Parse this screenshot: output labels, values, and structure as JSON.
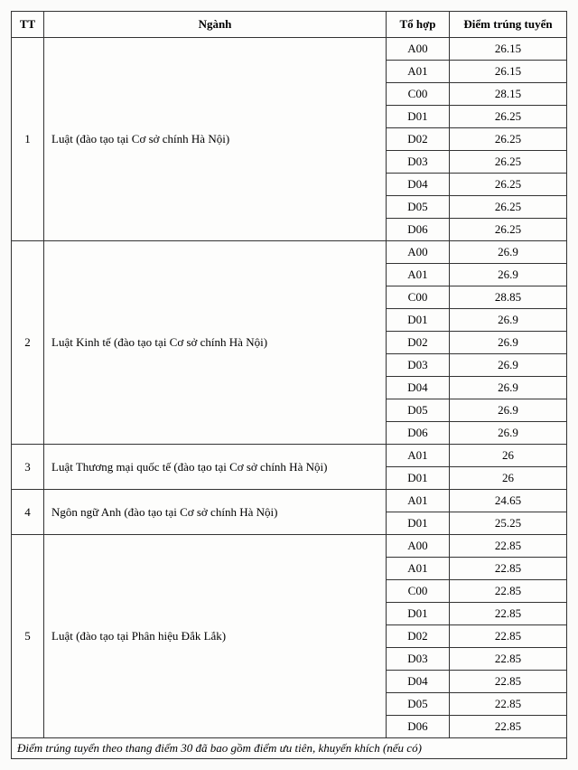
{
  "columns": {
    "tt": "TT",
    "nganh": "Ngành",
    "tohop": "Tổ hợp",
    "diem": "Điểm trúng tuyển"
  },
  "majors": [
    {
      "tt": "1",
      "name": "Luật (đào tạo tại Cơ sở chính Hà Nội)",
      "rows": [
        {
          "combo": "A00",
          "score": "26.15"
        },
        {
          "combo": "A01",
          "score": "26.15"
        },
        {
          "combo": "C00",
          "score": "28.15"
        },
        {
          "combo": "D01",
          "score": "26.25"
        },
        {
          "combo": "D02",
          "score": "26.25"
        },
        {
          "combo": "D03",
          "score": "26.25"
        },
        {
          "combo": "D04",
          "score": "26.25"
        },
        {
          "combo": "D05",
          "score": "26.25"
        },
        {
          "combo": "D06",
          "score": "26.25"
        }
      ]
    },
    {
      "tt": "2",
      "name": "Luật Kinh tế (đào tạo tại Cơ sở chính Hà Nội)",
      "rows": [
        {
          "combo": "A00",
          "score": "26.9"
        },
        {
          "combo": "A01",
          "score": "26.9"
        },
        {
          "combo": "C00",
          "score": "28.85"
        },
        {
          "combo": "D01",
          "score": "26.9"
        },
        {
          "combo": "D02",
          "score": "26.9"
        },
        {
          "combo": "D03",
          "score": "26.9"
        },
        {
          "combo": "D04",
          "score": "26.9"
        },
        {
          "combo": "D05",
          "score": "26.9"
        },
        {
          "combo": "D06",
          "score": "26.9"
        }
      ]
    },
    {
      "tt": "3",
      "name": "Luật Thương mại quốc tế (đào tạo tại Cơ sở chính Hà Nội)",
      "rows": [
        {
          "combo": "A01",
          "score": "26"
        },
        {
          "combo": "D01",
          "score": "26"
        }
      ]
    },
    {
      "tt": "4",
      "name": "Ngôn ngữ Anh (đào tạo tại Cơ sở chính Hà Nội)",
      "rows": [
        {
          "combo": "A01",
          "score": "24.65"
        },
        {
          "combo": "D01",
          "score": "25.25"
        }
      ]
    },
    {
      "tt": "5",
      "name": "Luật (đào tạo tại Phân hiệu Đắk Lắk)",
      "rows": [
        {
          "combo": "A00",
          "score": "22.85"
        },
        {
          "combo": "A01",
          "score": "22.85"
        },
        {
          "combo": "C00",
          "score": "22.85"
        },
        {
          "combo": "D01",
          "score": "22.85"
        },
        {
          "combo": "D02",
          "score": "22.85"
        },
        {
          "combo": "D03",
          "score": "22.85"
        },
        {
          "combo": "D04",
          "score": "22.85"
        },
        {
          "combo": "D05",
          "score": "22.85"
        },
        {
          "combo": "D06",
          "score": "22.85"
        }
      ]
    }
  ],
  "footnote": "Điểm trúng tuyển theo thang điểm 30 đã bao gồm điểm ưu tiên, khuyến khích (nếu có)"
}
